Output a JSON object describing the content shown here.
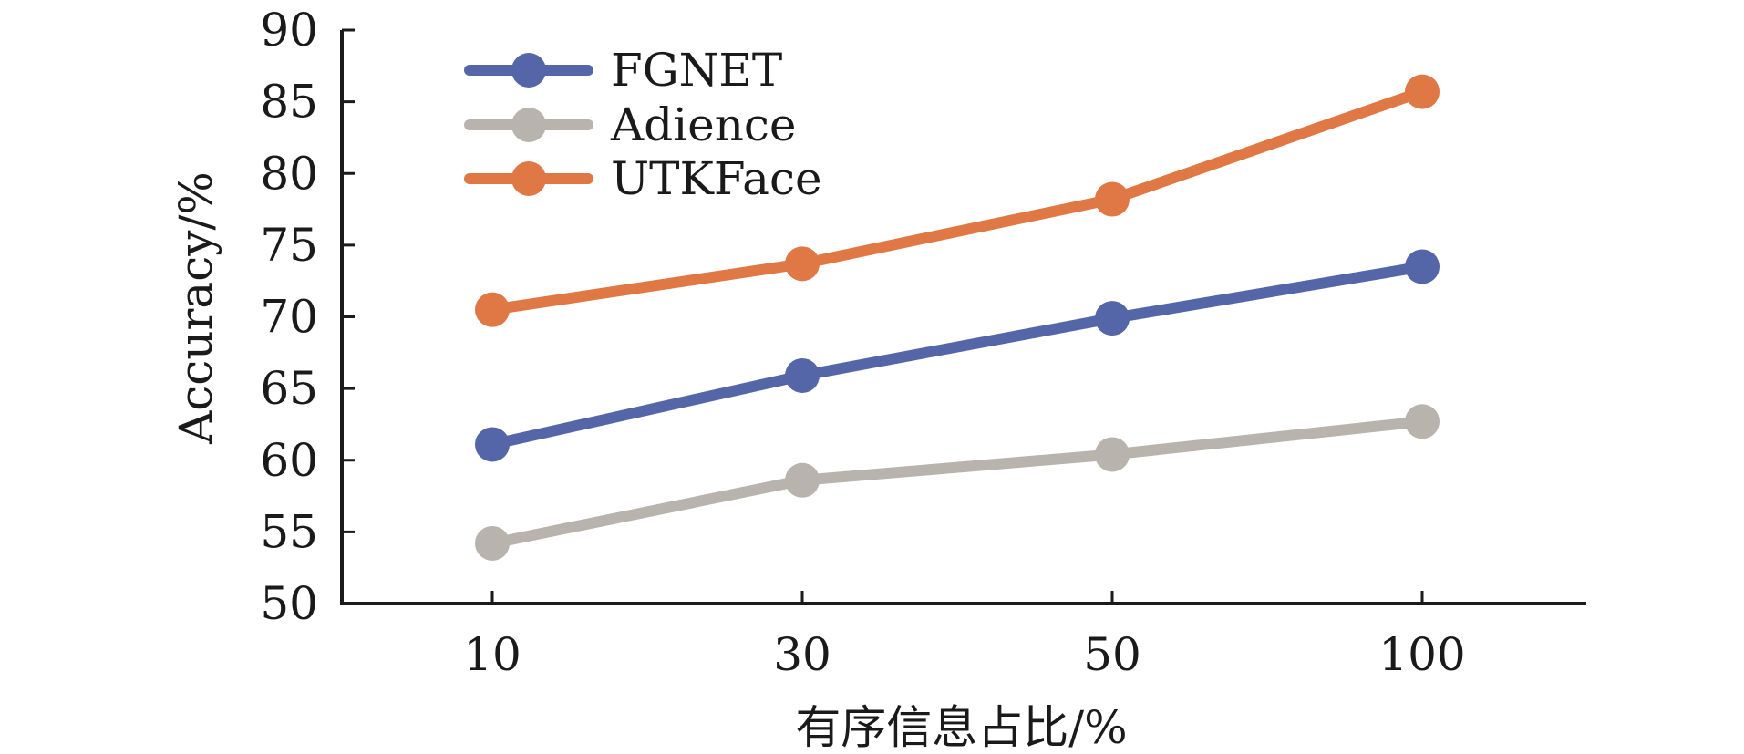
{
  "chart_data": {
    "type": "line",
    "xlabel": "有序信息占比/%",
    "ylabel": "Accuracy/%",
    "categories": [
      "10",
      "30",
      "50",
      "100"
    ],
    "ylim": [
      50,
      90
    ],
    "yticks": [
      50,
      55,
      60,
      65,
      70,
      75,
      80,
      85,
      90
    ],
    "grid": false,
    "legend": "top-left",
    "series": [
      {
        "name": "FGNET",
        "color": "#5566a8",
        "values": [
          61.1,
          65.9,
          69.9,
          73.5
        ]
      },
      {
        "name": "Adience",
        "color": "#b9b3ae",
        "values": [
          54.2,
          58.6,
          60.4,
          62.7
        ]
      },
      {
        "name": "UTKFace",
        "color": "#e07845",
        "values": [
          70.5,
          73.7,
          78.2,
          85.7
        ]
      }
    ]
  }
}
